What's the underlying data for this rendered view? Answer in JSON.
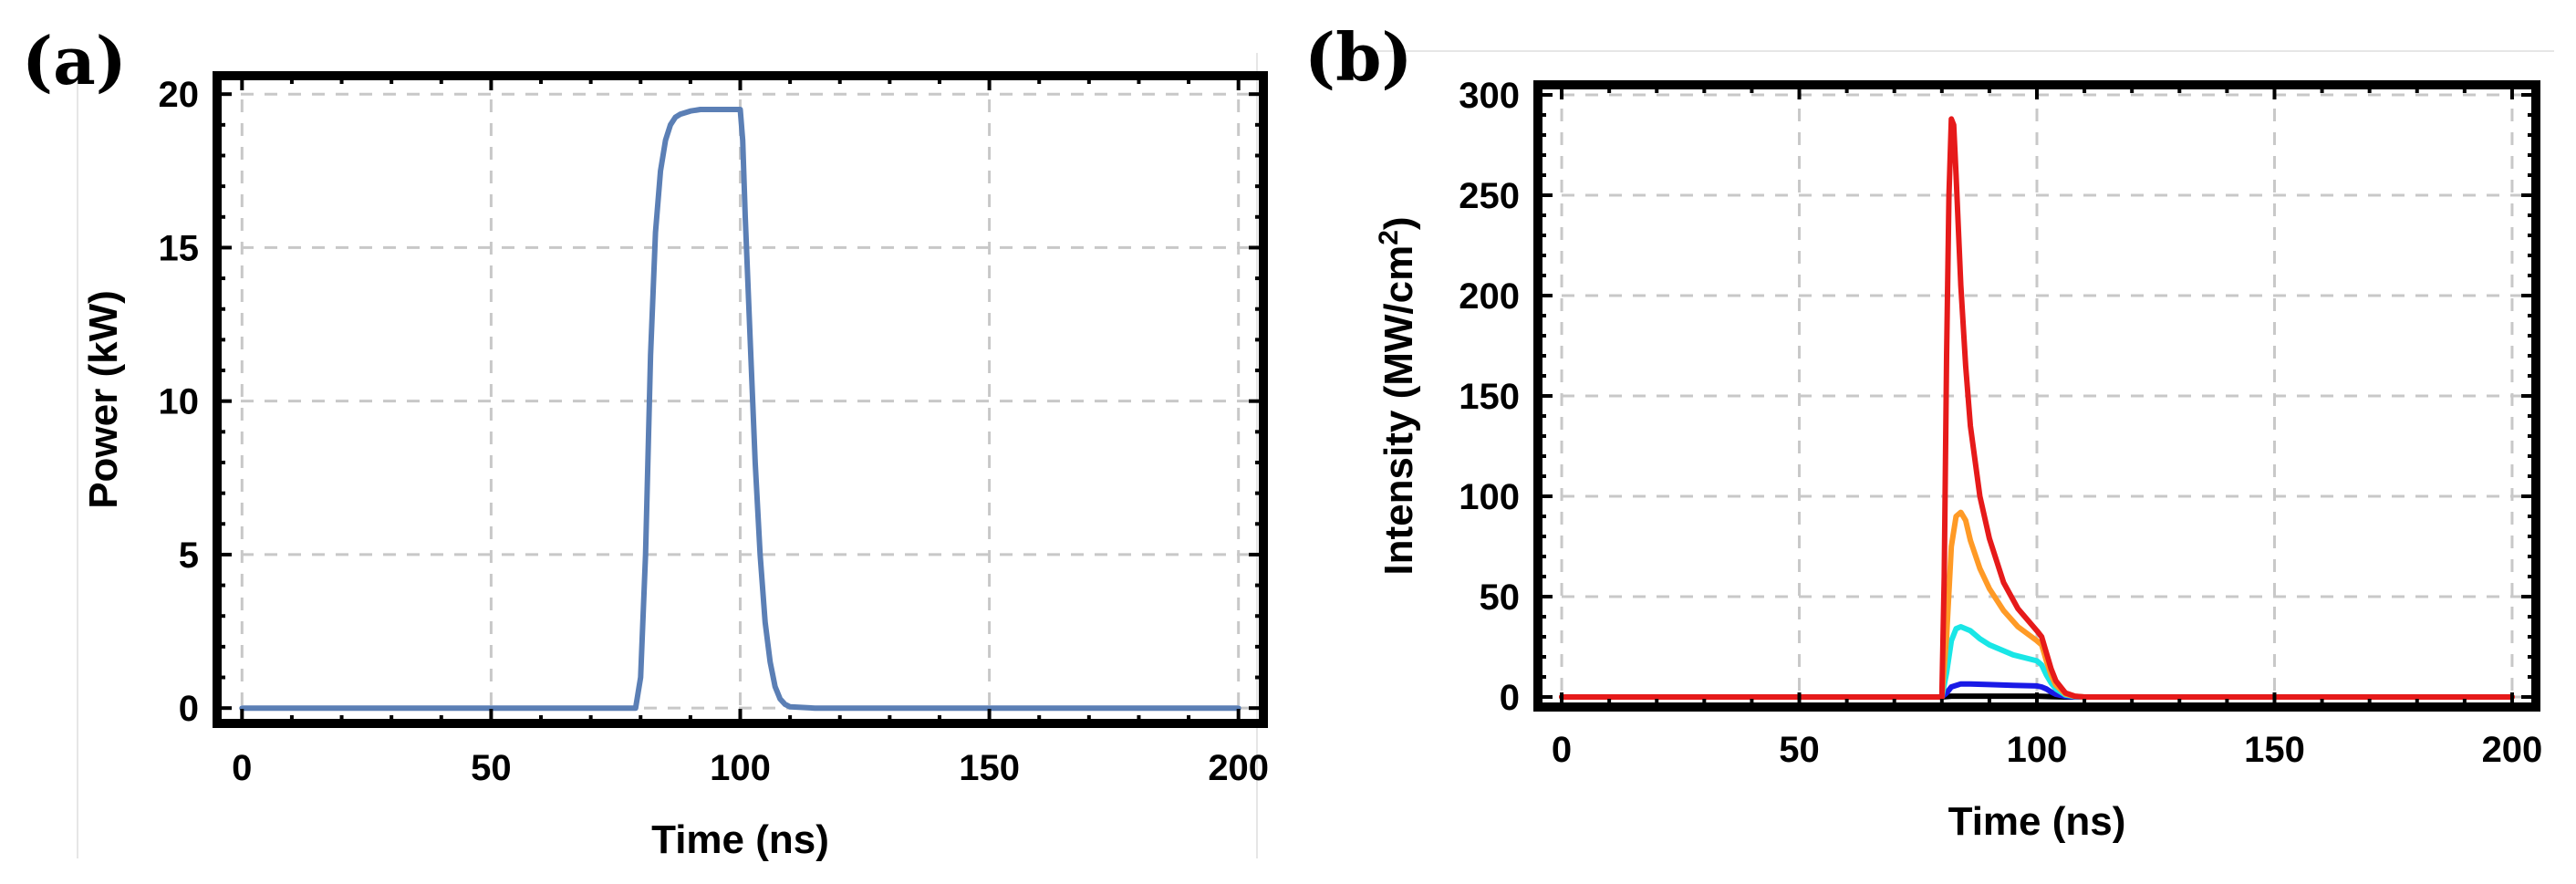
{
  "panels": [
    {
      "label": "(a)",
      "chart_data": {
        "type": "line",
        "title": "",
        "xlabel": "Time (ns)",
        "ylabel": "Power (kW)",
        "xlim": [
          -5,
          205
        ],
        "ylim": [
          -0.5,
          20.6
        ],
        "xticks": [
          0,
          50,
          100,
          150,
          200
        ],
        "yticks": [
          0,
          5,
          10,
          15,
          20
        ],
        "grid": true,
        "series": [
          {
            "color": "#5b7fb5",
            "x": [
              0,
              79,
              80,
              81,
              82,
              83,
              84,
              85,
              86,
              87,
              88,
              90,
              92,
              95,
              100,
              100.5,
              101,
              102,
              103,
              104,
              105,
              106,
              107,
              108,
              109,
              110,
              115,
              200
            ],
            "y": [
              0,
              0,
              1.0,
              5.0,
              11.5,
              15.5,
              17.5,
              18.5,
              19.0,
              19.25,
              19.35,
              19.45,
              19.5,
              19.5,
              19.5,
              18.5,
              16.0,
              12.0,
              8.0,
              5.0,
              2.8,
              1.5,
              0.7,
              0.3,
              0.12,
              0.04,
              0,
              0
            ]
          }
        ]
      }
    },
    {
      "label": "(b)",
      "chart_data": {
        "type": "line",
        "title": "",
        "xlabel": "Time (ns)",
        "ylabel": "Intensity (MW/cm",
        "ylabel_superscript": "2",
        "ylabel_suffix": ")",
        "xlim": [
          -5,
          205
        ],
        "ylim": [
          -5,
          305
        ],
        "xticks": [
          0,
          50,
          100,
          150,
          200
        ],
        "yticks": [
          0,
          50,
          100,
          150,
          200,
          250,
          300
        ],
        "grid": true,
        "series": [
          {
            "color": "#000000",
            "x": [
              0,
              80,
              82,
              90,
              100,
              103,
              106,
              200
            ],
            "y": [
              0,
              0,
              0.4,
              0.4,
              0.4,
              0.2,
              0,
              0
            ]
          },
          {
            "color": "#1a1ae6",
            "x": [
              0,
              80,
              81,
              82,
              84,
              86,
              90,
              95,
              100,
              101,
              102,
              103,
              104,
              106,
              108,
              200
            ],
            "y": [
              0,
              0,
              2.0,
              5.0,
              6.5,
              6.5,
              6.2,
              5.8,
              5.5,
              5.0,
              4.0,
              2.5,
              1.3,
              0.3,
              0,
              0
            ]
          },
          {
            "color": "#19e6e6",
            "x": [
              0,
              80,
              81,
              82,
              83,
              84,
              86,
              88,
              90,
              95,
              100,
              101,
              102,
              103,
              104,
              106,
              108,
              110,
              200
            ],
            "y": [
              0,
              0,
              12,
              28,
              34,
              35,
              33,
              29,
              26,
              21,
              18,
              16,
              11,
              7,
              4,
              1,
              0.2,
              0,
              0
            ]
          },
          {
            "color": "#ff9a26",
            "x": [
              0,
              80,
              81,
              82,
              83,
              84,
              85,
              86,
              88,
              90,
              93,
              96,
              100,
              101,
              102,
              103,
              104,
              106,
              108,
              110,
              200
            ],
            "y": [
              0,
              0,
              30,
              75,
              90,
              92,
              88,
              78,
              64,
              54,
              43,
              35,
              28,
              26,
              18,
              11,
              6,
              1.5,
              0.3,
              0,
              0
            ]
          },
          {
            "color": "#e61a1a",
            "x": [
              0,
              80,
              80.5,
              81,
              81.5,
              82,
              82.5,
              83,
              84,
              85,
              86,
              88,
              90,
              93,
              96,
              100,
              101,
              102,
              103,
              104,
              106,
              108,
              110,
              200
            ],
            "y": [
              0,
              0,
              60,
              170,
              250,
              288,
              285,
              260,
              205,
              165,
              135,
              100,
              79,
              57,
              44,
              33,
              30,
              22,
              14,
              8,
              2,
              0.4,
              0,
              0
            ]
          }
        ]
      }
    }
  ]
}
